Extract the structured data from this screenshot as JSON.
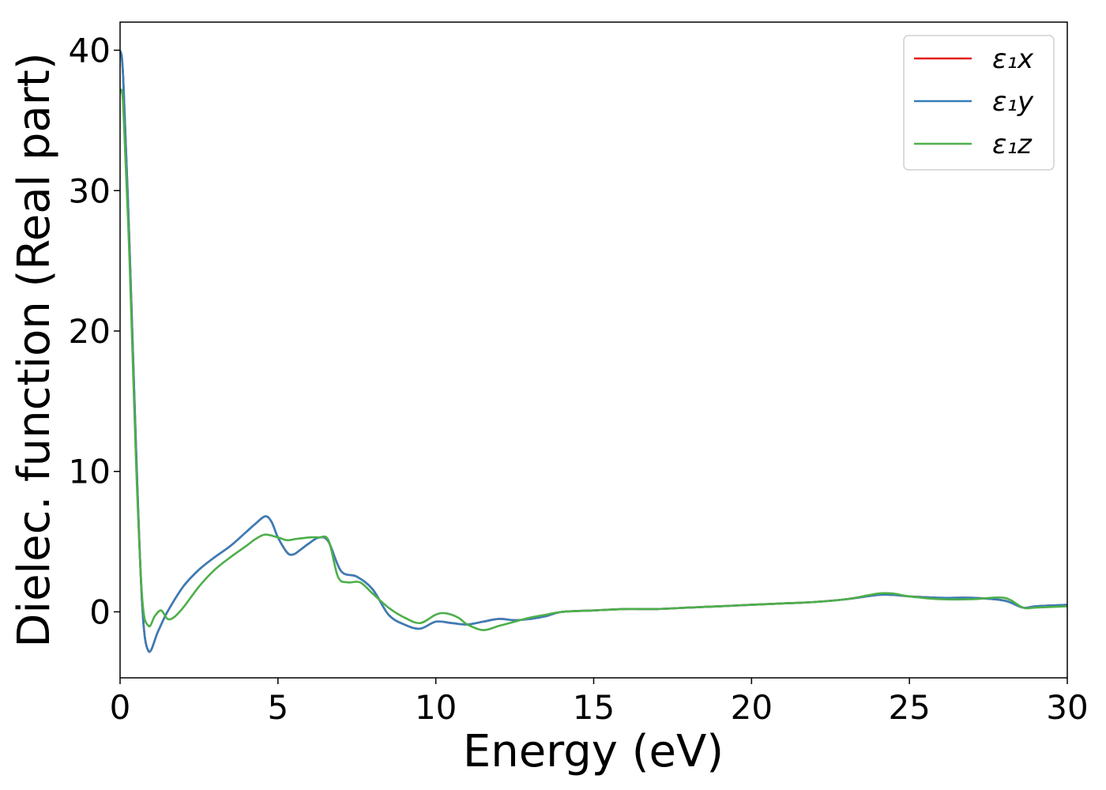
{
  "chart_data": {
    "type": "line",
    "title": "",
    "xlabel": "Energy (eV)",
    "ylabel": "Dielec. function (Real part)",
    "xlim": [
      0,
      30
    ],
    "ylim": [
      -4.7,
      42
    ],
    "xticks": [
      0,
      5,
      10,
      15,
      20,
      25,
      30
    ],
    "yticks": [
      0,
      10,
      20,
      30,
      40
    ],
    "grid": false,
    "legend_placement": "top-right",
    "series": [
      {
        "name": "ε₁x",
        "color": "#e41a1c",
        "x": [
          0,
          0.1,
          0.3,
          0.5,
          0.7,
          0.9,
          1.2,
          1.5,
          2.0,
          2.5,
          3.0,
          3.5,
          4.0,
          4.3,
          4.6,
          4.8,
          5.0,
          5.3,
          5.5,
          5.7,
          6.0,
          6.3,
          6.6,
          7.0,
          7.5,
          8.0,
          8.5,
          9.0,
          9.5,
          10.0,
          10.5,
          11.0,
          11.5,
          12.0,
          12.5,
          13.0,
          13.5,
          14.0,
          15.0,
          16.0,
          17.0,
          18.0,
          19.0,
          20.0,
          21.0,
          22.0,
          23.0,
          24.0,
          24.5,
          25.0,
          26.0,
          27.0,
          28.0,
          28.6,
          29.0,
          30.0
        ],
        "values": [
          40,
          38,
          26,
          12,
          0.5,
          -2.8,
          -1.4,
          0,
          1.8,
          3.0,
          3.9,
          4.7,
          5.7,
          6.3,
          6.8,
          6.4,
          5.3,
          4.2,
          4.1,
          4.4,
          4.9,
          5.3,
          5.0,
          2.9,
          2.5,
          1.6,
          -0.2,
          -0.9,
          -1.2,
          -0.7,
          -0.8,
          -0.9,
          -0.7,
          -0.5,
          -0.6,
          -0.5,
          -0.3,
          0.0,
          0.1,
          0.2,
          0.2,
          0.3,
          0.4,
          0.5,
          0.6,
          0.7,
          0.9,
          1.2,
          1.2,
          1.1,
          1.0,
          1.0,
          0.8,
          0.3,
          0.4,
          0.5
        ]
      },
      {
        "name": "ε₁y",
        "color": "#377eb8",
        "x": [
          0,
          0.1,
          0.3,
          0.5,
          0.7,
          0.9,
          1.2,
          1.5,
          2.0,
          2.5,
          3.0,
          3.5,
          4.0,
          4.3,
          4.6,
          4.8,
          5.0,
          5.3,
          5.5,
          5.7,
          6.0,
          6.3,
          6.6,
          7.0,
          7.5,
          8.0,
          8.5,
          9.0,
          9.5,
          10.0,
          10.5,
          11.0,
          11.5,
          12.0,
          12.5,
          13.0,
          13.5,
          14.0,
          15.0,
          16.0,
          17.0,
          18.0,
          19.0,
          20.0,
          21.0,
          22.0,
          23.0,
          24.0,
          24.5,
          25.0,
          26.0,
          27.0,
          28.0,
          28.6,
          29.0,
          30.0
        ],
        "values": [
          40,
          38,
          26,
          12,
          0.5,
          -2.8,
          -1.4,
          0,
          1.8,
          3.0,
          3.9,
          4.7,
          5.7,
          6.3,
          6.8,
          6.4,
          5.3,
          4.2,
          4.1,
          4.4,
          4.9,
          5.3,
          5.0,
          2.9,
          2.5,
          1.6,
          -0.2,
          -0.9,
          -1.2,
          -0.7,
          -0.8,
          -0.9,
          -0.7,
          -0.5,
          -0.6,
          -0.5,
          -0.3,
          0.0,
          0.1,
          0.2,
          0.2,
          0.3,
          0.4,
          0.5,
          0.6,
          0.7,
          0.9,
          1.2,
          1.2,
          1.1,
          1.0,
          1.0,
          0.8,
          0.3,
          0.4,
          0.5
        ]
      },
      {
        "name": "ε₁z",
        "color": "#4daf4a",
        "x": [
          0,
          0.1,
          0.3,
          0.5,
          0.7,
          0.9,
          1.1,
          1.3,
          1.5,
          1.7,
          2.0,
          2.5,
          3.0,
          3.5,
          4.0,
          4.3,
          4.6,
          5.0,
          5.3,
          5.6,
          6.0,
          6.3,
          6.6,
          6.9,
          7.2,
          7.6,
          8.0,
          8.5,
          9.0,
          9.5,
          10.0,
          10.3,
          10.7,
          11.0,
          11.5,
          12.0,
          12.5,
          13.0,
          13.5,
          14.0,
          15.0,
          16.0,
          17.0,
          18.0,
          19.0,
          20.0,
          21.0,
          22.0,
          23.0,
          24.0,
          24.5,
          25.0,
          26.0,
          27.0,
          28.0,
          28.6,
          29.0,
          30.0
        ],
        "values": [
          37,
          36,
          25,
          11,
          1.0,
          -1.0,
          -0.3,
          0.1,
          -0.5,
          -0.4,
          0.3,
          1.8,
          3.0,
          3.9,
          4.7,
          5.2,
          5.5,
          5.3,
          5.1,
          5.2,
          5.3,
          5.3,
          5.1,
          2.5,
          2.1,
          2.1,
          1.3,
          0.3,
          -0.4,
          -0.8,
          -0.2,
          -0.1,
          -0.4,
          -0.9,
          -1.3,
          -1.0,
          -0.7,
          -0.4,
          -0.2,
          0.0,
          0.1,
          0.2,
          0.2,
          0.3,
          0.4,
          0.5,
          0.6,
          0.7,
          0.9,
          1.3,
          1.3,
          1.1,
          0.9,
          0.9,
          1.0,
          0.3,
          0.3,
          0.4
        ]
      }
    ]
  }
}
